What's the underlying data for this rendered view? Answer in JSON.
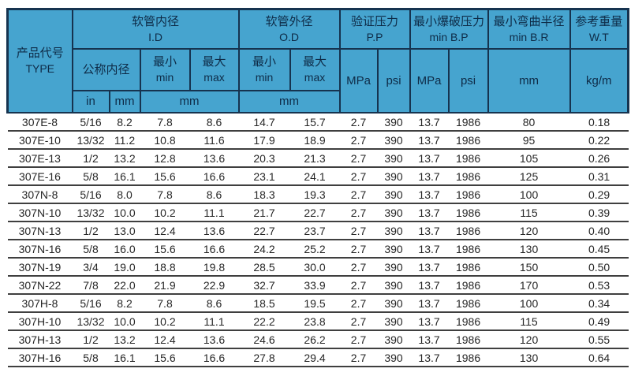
{
  "colors": {
    "header_bg": "#46A4CF",
    "header_border": "#16334F",
    "header_text": "#0E2B47",
    "row_divider": "#3F3F3F",
    "data_text": "#262626",
    "page_bg": "#FFFFFF"
  },
  "table": {
    "header": {
      "product_code": {
        "zh": "产品代号",
        "en": "TYPE"
      },
      "id_group": {
        "zh": "软管内径",
        "en": "I.D"
      },
      "od_group": {
        "zh": "软管外径",
        "en": "O.D"
      },
      "pp_group": {
        "zh": "验证压力",
        "en": "P.P"
      },
      "bp_group": {
        "zh": "最小爆破压力",
        "en": "min B.P"
      },
      "br_group": {
        "zh": "最小弯曲半径",
        "en": "min B.R"
      },
      "wt_group": {
        "zh": "参考重量",
        "en": "W.T"
      },
      "nominal_id": "公称内径",
      "min": {
        "zh": "最小",
        "en": "min"
      },
      "max": {
        "zh": "最大",
        "en": "max"
      },
      "units": {
        "mpa": "MPa",
        "psi": "psi",
        "in": "in",
        "mm": "mm",
        "kg_m": "kg/m"
      }
    },
    "columns": [
      "type",
      "id-nominal-in",
      "id-nominal-mm",
      "id-min",
      "id-max",
      "od-min",
      "od-max",
      "pp-mpa",
      "pp-psi",
      "bp-mpa",
      "bp-psi",
      "br-mm",
      "wt-kgm"
    ],
    "rows": [
      [
        "307E-8",
        "5/16",
        "8.2",
        "7.8",
        "8.6",
        "14.7",
        "15.7",
        "2.7",
        "390",
        "13.7",
        "1986",
        "80",
        "0.18"
      ],
      [
        "307E-10",
        "13/32",
        "11.2",
        "10.8",
        "11.6",
        "17.9",
        "18.9",
        "2.7",
        "390",
        "13.7",
        "1986",
        "95",
        "0.22"
      ],
      [
        "307E-13",
        "1/2",
        "13.2",
        "12.8",
        "13.6",
        "20.3",
        "21.3",
        "2.7",
        "390",
        "13.7",
        "1986",
        "105",
        "0.26"
      ],
      [
        "307E-16",
        "5/8",
        "16.1",
        "15.6",
        "16.6",
        "23.1",
        "24.1",
        "2.7",
        "390",
        "13.7",
        "1986",
        "125",
        "0.31"
      ],
      [
        "307N-8",
        "5/16",
        "8.0",
        "7.8",
        "8.6",
        "18.3",
        "19.3",
        "2.7",
        "390",
        "13.7",
        "1986",
        "100",
        "0.29"
      ],
      [
        "307N-10",
        "13/32",
        "10.0",
        "10.2",
        "11.1",
        "21.7",
        "22.7",
        "2.7",
        "390",
        "13.7",
        "1986",
        "115",
        "0.39"
      ],
      [
        "307N-13",
        "1/2",
        "13.0",
        "12.4",
        "13.6",
        "22.7",
        "23.7",
        "2.7",
        "390",
        "13.7",
        "1986",
        "120",
        "0.40"
      ],
      [
        "307N-16",
        "5/8",
        "16.0",
        "15.6",
        "16.6",
        "24.2",
        "25.2",
        "2.7",
        "390",
        "13.7",
        "1986",
        "130",
        "0.45"
      ],
      [
        "307N-19",
        "3/4",
        "19.0",
        "18.8",
        "19.8",
        "28.5",
        "30.0",
        "2.7",
        "390",
        "13.7",
        "1986",
        "150",
        "0.50"
      ],
      [
        "307N-22",
        "7/8",
        "22.0",
        "21.9",
        "22.9",
        "32.7",
        "33.9",
        "2.7",
        "390",
        "13.7",
        "1986",
        "170",
        "0.53"
      ],
      [
        "307H-8",
        "5/16",
        "8.2",
        "7.8",
        "8.6",
        "18.5",
        "19.5",
        "2.7",
        "390",
        "13.7",
        "1986",
        "100",
        "0.34"
      ],
      [
        "307H-10",
        "13/32",
        "10.0",
        "10.2",
        "11.1",
        "22.2",
        "23.8",
        "2.7",
        "390",
        "13.7",
        "1986",
        "115",
        "0.49"
      ],
      [
        "307H-13",
        "1/2",
        "13.2",
        "12.4",
        "13.6",
        "24.6",
        "26.2",
        "2.7",
        "390",
        "13.7",
        "1986",
        "120",
        "0.55"
      ],
      [
        "307H-16",
        "5/8",
        "16.1",
        "15.6",
        "16.6",
        "27.8",
        "29.4",
        "2.7",
        "390",
        "13.7",
        "1986",
        "130",
        "0.64"
      ]
    ]
  }
}
